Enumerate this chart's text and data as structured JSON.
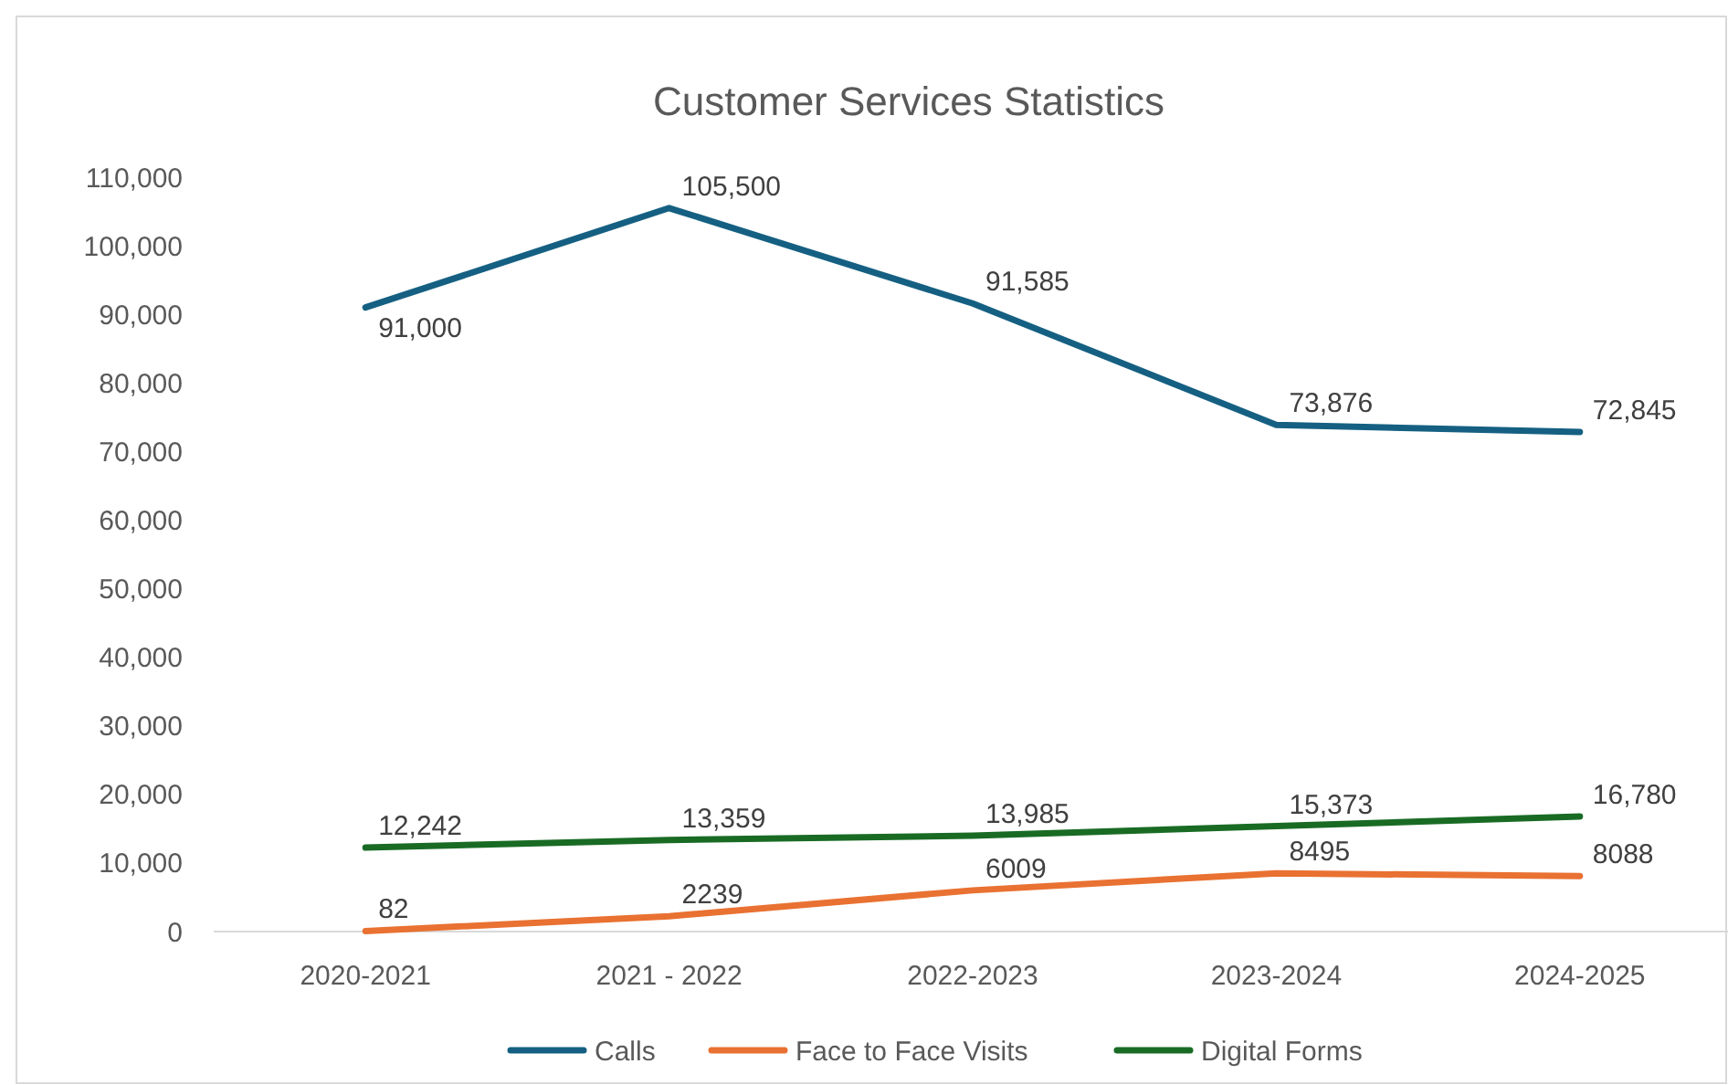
{
  "chart_data": {
    "type": "line",
    "title": "Customer Services Statistics",
    "categories": [
      "2020-2021",
      "2021 - 2022",
      "2022-2023",
      "2023-2024",
      "2024-2025"
    ],
    "series": [
      {
        "name": "Calls",
        "color": "#156082",
        "values": [
          91000,
          105500,
          91585,
          73876,
          72845
        ],
        "value_labels": [
          "91,000",
          "105,500",
          "91,585",
          "73,876",
          "72,845"
        ]
      },
      {
        "name": "Face to Face Visits",
        "color": "#e97132",
        "values": [
          82,
          2239,
          6009,
          8495,
          8088
        ],
        "value_labels": [
          "82",
          "2239",
          "6009",
          "8495",
          "8088"
        ]
      },
      {
        "name": "Digital Forms",
        "color": "#196b24",
        "values": [
          12242,
          13359,
          13985,
          15373,
          16780
        ],
        "value_labels": [
          "12,242",
          "13,359",
          "13,985",
          "15,373",
          "16,780"
        ]
      }
    ],
    "ylim": [
      0,
      110000
    ],
    "yticks": [
      {
        "value": 0,
        "label": "0"
      },
      {
        "value": 10000,
        "label": "10,000"
      },
      {
        "value": 20000,
        "label": "20,000"
      },
      {
        "value": 30000,
        "label": "30,000"
      },
      {
        "value": 40000,
        "label": "40,000"
      },
      {
        "value": 50000,
        "label": "50,000"
      },
      {
        "value": 60000,
        "label": "60,000"
      },
      {
        "value": 70000,
        "label": "70,000"
      },
      {
        "value": 80000,
        "label": "80,000"
      },
      {
        "value": 90000,
        "label": "90,000"
      },
      {
        "value": 100000,
        "label": "100,000"
      },
      {
        "value": 110000,
        "label": "110,000"
      }
    ],
    "grid": false,
    "legend": "bottom",
    "marker": "none",
    "line_style": "solid"
  }
}
